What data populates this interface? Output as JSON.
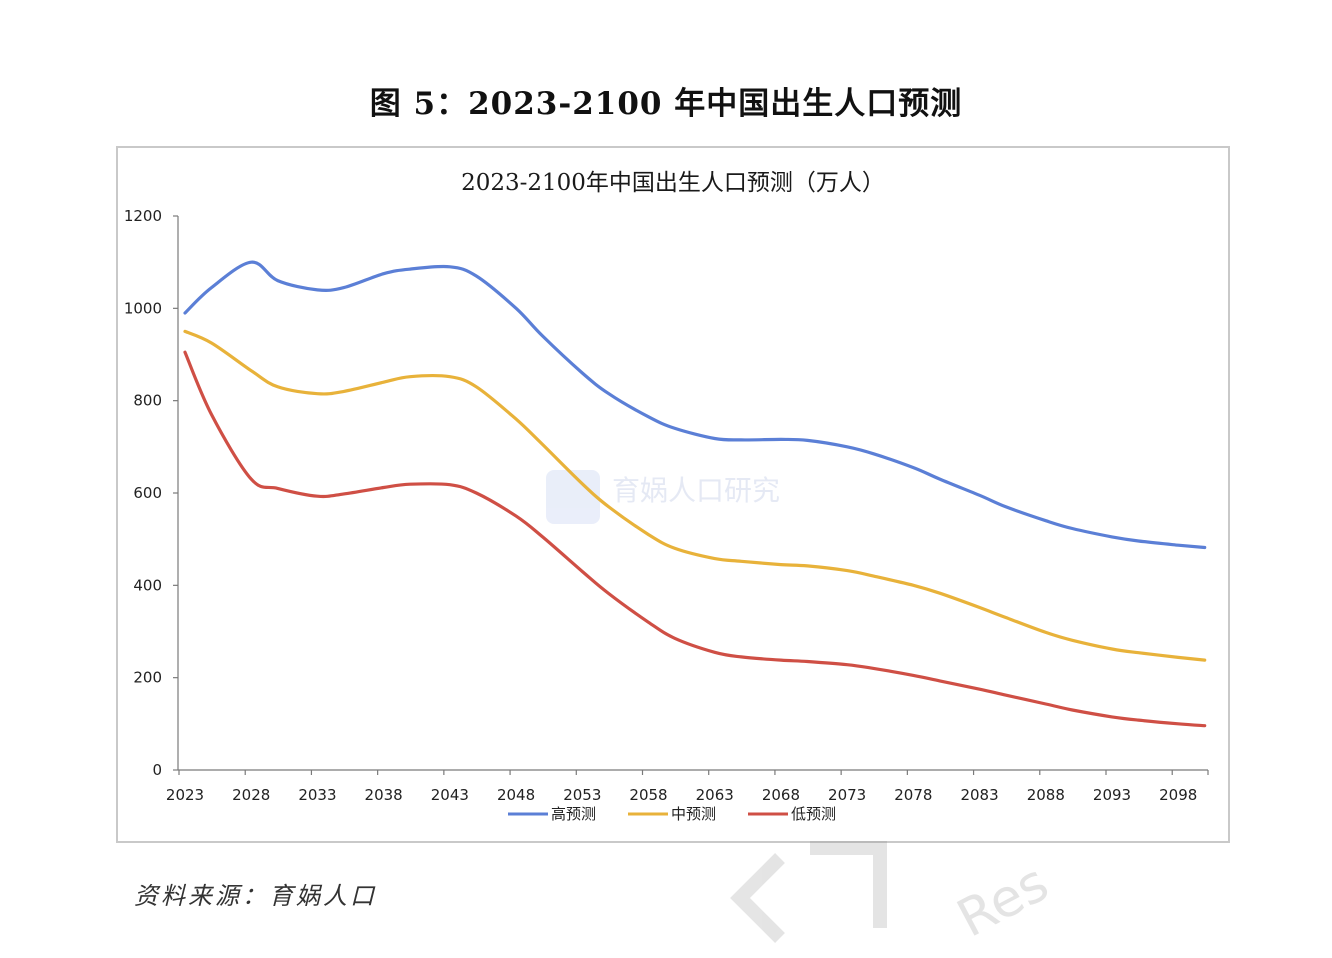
{
  "figure": {
    "title": "图 5：2023-2100 年中国出生人口预测",
    "source": "资料来源：育娲人口",
    "watermark": {
      "text": "育娲人口研究",
      "corner_text": "Res"
    }
  },
  "chart_data": {
    "type": "line",
    "title": "2023-2100年中国出生人口预测（万人）",
    "xlabel": "",
    "ylabel": "",
    "ylim": [
      0,
      1200
    ],
    "yticks": [
      0,
      200,
      400,
      600,
      800,
      1000,
      1200
    ],
    "xlim": [
      2023,
      2100
    ],
    "xticks": [
      2023,
      2028,
      2033,
      2038,
      2043,
      2048,
      2053,
      2058,
      2063,
      2068,
      2073,
      2078,
      2083,
      2088,
      2093,
      2098
    ],
    "x": [
      2023,
      2025,
      2028,
      2030,
      2033,
      2035,
      2038,
      2040,
      2043,
      2045,
      2048,
      2050,
      2053,
      2055,
      2058,
      2060,
      2063,
      2065,
      2068,
      2070,
      2073,
      2075,
      2078,
      2080,
      2083,
      2085,
      2088,
      2090,
      2093,
      2095,
      2098,
      2100
    ],
    "series": [
      {
        "name": "高预测",
        "color": "#5b7fd6",
        "values": [
          990,
          1045,
          1100,
          1060,
          1040,
          1045,
          1075,
          1085,
          1090,
          1070,
          1000,
          940,
          860,
          815,
          765,
          740,
          718,
          715,
          716,
          714,
          700,
          685,
          655,
          630,
          595,
          570,
          540,
          523,
          505,
          496,
          487,
          482
        ]
      },
      {
        "name": "中预测",
        "color": "#e8b23a",
        "values": [
          950,
          925,
          865,
          830,
          815,
          820,
          840,
          852,
          852,
          830,
          760,
          705,
          620,
          570,
          510,
          480,
          458,
          452,
          445,
          442,
          432,
          420,
          400,
          383,
          352,
          330,
          298,
          281,
          262,
          254,
          244,
          238
        ]
      },
      {
        "name": "低预测",
        "color": "#cf4f45",
        "values": [
          905,
          770,
          630,
          610,
          593,
          598,
          612,
          619,
          618,
          600,
          550,
          505,
          430,
          382,
          320,
          285,
          255,
          245,
          238,
          235,
          228,
          220,
          205,
          193,
          175,
          162,
          143,
          130,
          115,
          108,
          100,
          96
        ]
      }
    ],
    "legend": "bottom",
    "grid": false
  }
}
